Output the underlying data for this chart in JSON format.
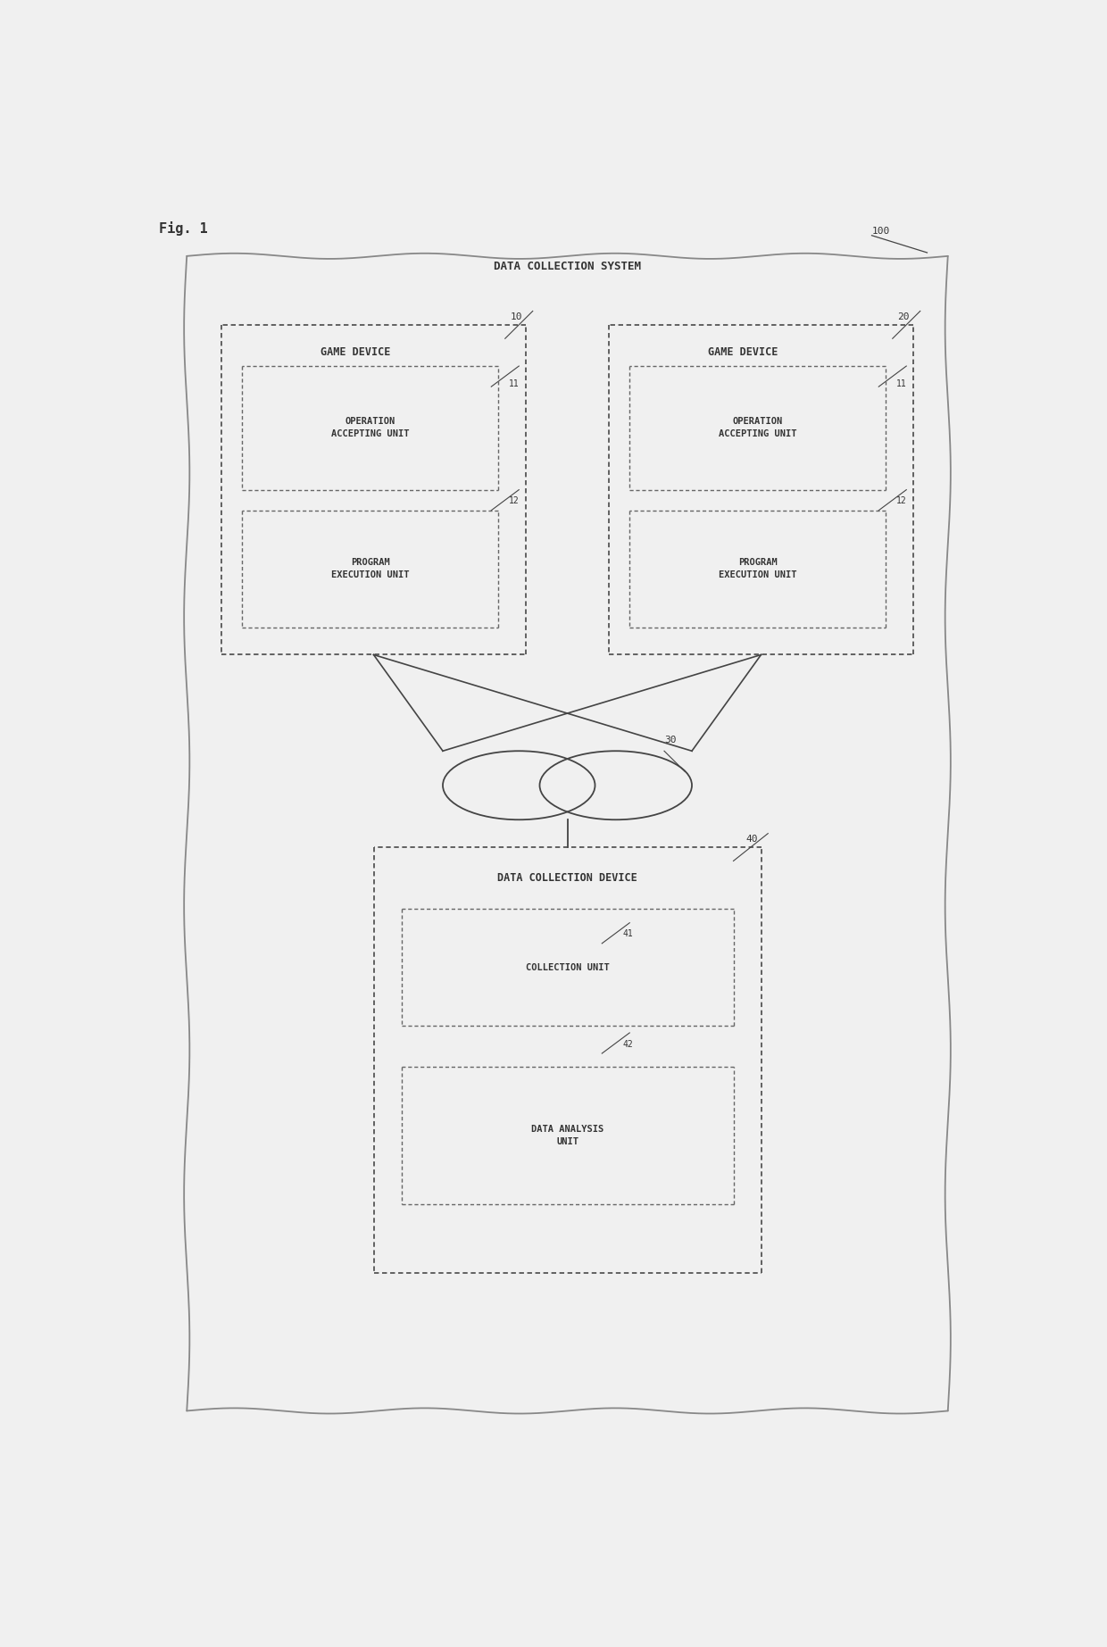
{
  "fig_label": "Fig. 1",
  "bg_color": "#f0f0f0",
  "outer_box_label": "DATA COLLECTION SYSTEM",
  "outer_box_ref": "100",
  "game_device_1": {
    "label": "GAME DEVICE",
    "ref": "10",
    "sub_ref_1": "11",
    "sub_ref_2": "12",
    "unit1_label": "OPERATION\nACCEPTING UNIT",
    "unit2_label": "PROGRAM\nEXECUTION UNIT"
  },
  "game_device_2": {
    "label": "GAME DEVICE",
    "ref": "20",
    "sub_ref_1": "11",
    "sub_ref_2": "12",
    "unit1_label": "OPERATION\nACCEPTING UNIT",
    "unit2_label": "PROGRAM\nEXECUTION UNIT"
  },
  "network_ref": "30",
  "data_collection_device": {
    "label": "DATA COLLECTION DEVICE",
    "ref": "40",
    "sub_ref_1": "41",
    "sub_ref_2": "42",
    "unit1_label": "COLLECTION UNIT",
    "unit2_label": "DATA ANALYSIS\nUNIT"
  },
  "line_color": "#444444",
  "text_color": "#333333",
  "font_size_title": 8.5,
  "font_size_label": 7.5,
  "font_size_ref": 7
}
